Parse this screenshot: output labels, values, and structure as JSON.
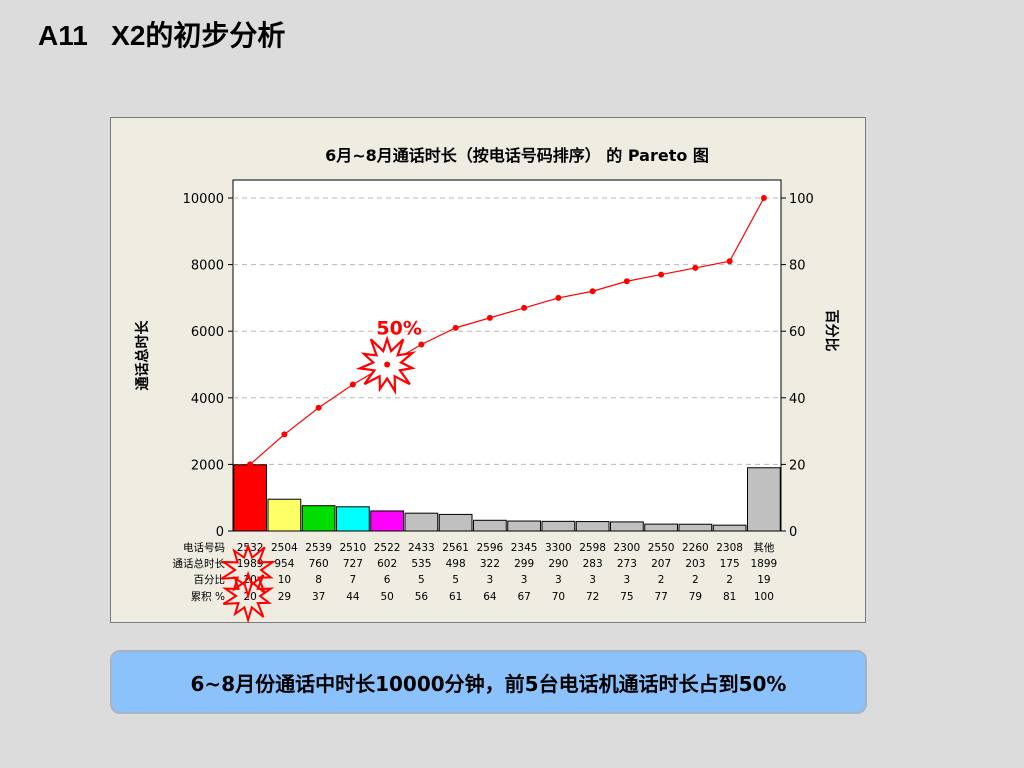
{
  "slide": {
    "title": "A11   X2的初步分析",
    "callout": "6~8月份通话中时长10000分钟，前5台电话机通话时长占到50%"
  },
  "chart_data": {
    "type": "bar",
    "title": "6月~8月通话时长（按电话号码排序） 的 Pareto 图",
    "ylabel": "通话总时长",
    "y2label": "百分比",
    "ylim": [
      0,
      10000
    ],
    "y2lim": [
      0,
      100
    ],
    "yticks": [
      0,
      2000,
      4000,
      6000,
      8000,
      10000
    ],
    "y2ticks": [
      0,
      20,
      40,
      60,
      80,
      100
    ],
    "grid": true,
    "categories": [
      "2532",
      "2504",
      "2539",
      "2510",
      "2522",
      "2433",
      "2561",
      "2596",
      "2345",
      "3300",
      "2598",
      "2300",
      "2550",
      "2260",
      "2308",
      "其他"
    ],
    "series": [
      {
        "type": "bar",
        "values": [
          1989,
          954,
          760,
          727,
          602,
          535,
          498,
          322,
          299,
          290,
          283,
          273,
          207,
          203,
          175,
          1899
        ],
        "colors": [
          "#ff0000",
          "#ffff66",
          "#00dd00",
          "#00ffff",
          "#ff00ff",
          "#c0c0c0",
          "#c0c0c0",
          "#c0c0c0",
          "#c0c0c0",
          "#c0c0c0",
          "#c0c0c0",
          "#c0c0c0",
          "#c0c0c0",
          "#c0c0c0",
          "#c0c0c0",
          "#c0c0c0"
        ]
      },
      {
        "type": "line",
        "axis": "right",
        "color": "#ff0000",
        "values": [
          20,
          29,
          37,
          44,
          50,
          56,
          61,
          64,
          67,
          70,
          72,
          75,
          77,
          79,
          81,
          100
        ]
      }
    ],
    "table": {
      "row_labels": [
        "电话号码",
        "通话总时长",
        "百分比",
        "累积 %"
      ],
      "percent": [
        20,
        10,
        8,
        7,
        6,
        5,
        5,
        3,
        3,
        3,
        3,
        3,
        2,
        2,
        2,
        19
      ],
      "cumulative": [
        20,
        29,
        37,
        44,
        50,
        56,
        61,
        64,
        67,
        70,
        72,
        75,
        77,
        79,
        81,
        100
      ]
    },
    "annotations": [
      {
        "text": "50%",
        "color": "#ff0000"
      }
    ]
  }
}
